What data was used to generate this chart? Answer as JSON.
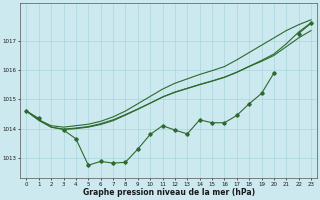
{
  "x": [
    0,
    1,
    2,
    3,
    4,
    5,
    6,
    7,
    8,
    9,
    10,
    11,
    12,
    13,
    14,
    15,
    16,
    17,
    18,
    19,
    20,
    21,
    22,
    23
  ],
  "bg_color": "#cce9f0",
  "grid_color": "#aad4dc",
  "line_color": "#2d6a2d",
  "xlabel": "Graphe pression niveau de la mer (hPa)",
  "ylim_min": 1012.3,
  "ylim_max": 1018.3,
  "xlim_min": -0.5,
  "xlim_max": 23.5,
  "yticks": [
    1013,
    1014,
    1015,
    1016,
    1017
  ],
  "xticks": [
    0,
    1,
    2,
    3,
    4,
    5,
    6,
    7,
    8,
    9,
    10,
    11,
    12,
    13,
    14,
    15,
    16,
    17,
    18,
    19,
    20,
    21,
    22,
    23
  ],
  "y_jagged": [
    1014.6,
    1014.35,
    null,
    1013.95,
    1013.65,
    1012.75,
    1012.88,
    1012.82,
    1012.85,
    1013.3,
    1013.8,
    1014.1,
    1013.95,
    1013.82,
    1014.3,
    1014.2,
    1014.2,
    1014.45,
    1014.85,
    1015.2,
    1015.9,
    null,
    1017.25,
    1017.6
  ],
  "y_smooth_top": [
    1014.6,
    1014.3,
    1014.1,
    1014.05,
    1014.1,
    1014.15,
    1014.25,
    1014.4,
    1014.6,
    1014.85,
    1015.1,
    1015.35,
    1015.55,
    1015.7,
    1015.85,
    1015.98,
    1016.12,
    1016.35,
    1016.6,
    1016.85,
    1017.1,
    1017.35,
    1017.55,
    1017.72
  ],
  "y_smooth_mid": [
    1014.6,
    1014.28,
    1014.05,
    1013.98,
    1014.02,
    1014.07,
    1014.17,
    1014.3,
    1014.48,
    1014.67,
    1014.87,
    1015.08,
    1015.24,
    1015.37,
    1015.5,
    1015.62,
    1015.75,
    1015.92,
    1016.12,
    1016.3,
    1016.5,
    1016.8,
    1017.1,
    1017.35
  ],
  "y_smooth_steep": [
    1014.6,
    1014.3,
    1014.05,
    1013.97,
    1014.0,
    1014.05,
    1014.14,
    1014.27,
    1014.46,
    1014.66,
    1014.87,
    1015.08,
    1015.25,
    1015.38,
    1015.51,
    1015.63,
    1015.76,
    1015.93,
    1016.13,
    1016.33,
    1016.55,
    1016.9,
    1017.3,
    1017.62
  ]
}
